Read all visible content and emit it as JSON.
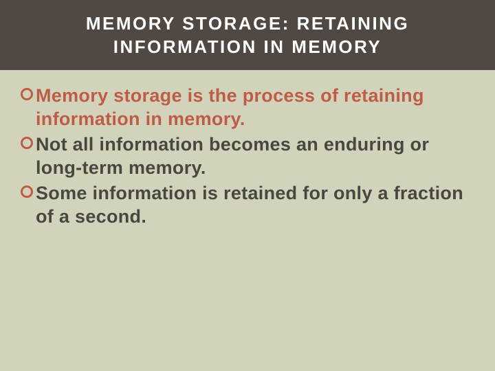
{
  "colors": {
    "header_bg": "#4f4843",
    "header_text": "#ffffff",
    "content_bg": "#d3d3bc",
    "bullet_text": "#4a4640",
    "highlight_text": "#be5d45",
    "bullet_ring": "#be5d45"
  },
  "typography": {
    "header_fontsize": 26,
    "bullet_fontsize": 27,
    "bullet_marker_outer": 18,
    "bullet_marker_border": 3
  },
  "header": {
    "line1": "MEMORY STORAGE: RETAINING",
    "line2": "INFORMATION IN MEMORY"
  },
  "bullets": [
    {
      "lead": "Memory storage",
      "lead_color": "#be5d45",
      "rest": " is the process of retaining information in memory.",
      "rest_color": "#be5d45"
    },
    {
      "lead": "",
      "lead_color": "#4a4640",
      "rest": "Not all information becomes an enduring or long-term memory.",
      "rest_color": "#4a4640"
    },
    {
      "lead": "",
      "lead_color": "#4a4640",
      "rest": "Some information is retained for only a fraction of a second.",
      "rest_color": "#4a4640"
    }
  ]
}
